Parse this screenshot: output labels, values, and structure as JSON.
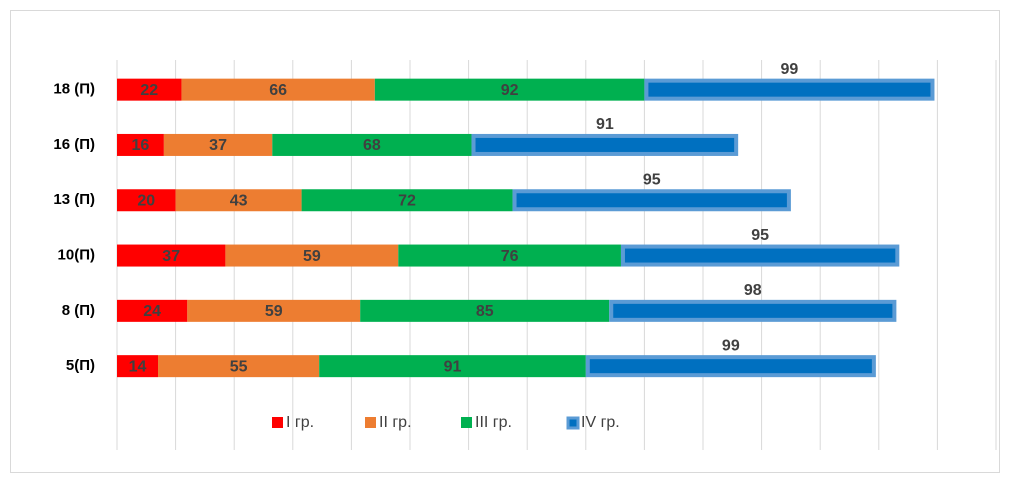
{
  "chart_data": {
    "type": "stacked_barh",
    "categories": [
      "18 (П)",
      "16 (П)",
      "13 (П)",
      "10(П)",
      "8 (П)",
      "5(П)"
    ],
    "series": [
      {
        "name": "I гр.",
        "color": "#ff0000",
        "values": [
          22,
          16,
          20,
          37,
          24,
          14
        ]
      },
      {
        "name": "II гр.",
        "color": "#ed7d31",
        "values": [
          66,
          37,
          43,
          59,
          59,
          55
        ]
      },
      {
        "name": "III гр.",
        "color": "#00b050",
        "values": [
          92,
          68,
          72,
          76,
          85,
          91
        ]
      },
      {
        "name": "IV гр.",
        "color": "#0070c0",
        "values": [
          99,
          91,
          95,
          95,
          98,
          99
        ]
      }
    ],
    "xlim": [
      0,
      300
    ],
    "xticks": [
      0,
      20,
      40,
      60,
      80,
      100,
      120,
      140,
      160,
      180,
      200,
      220,
      240,
      260,
      280,
      300
    ],
    "grid": true,
    "legend": "bottom"
  }
}
